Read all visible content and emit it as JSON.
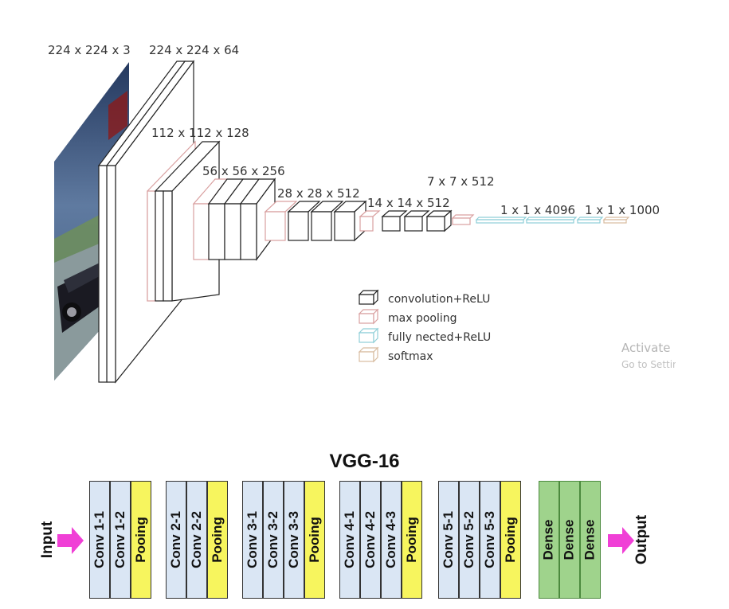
{
  "top_diagram": {
    "dimension_labels": [
      "224 x 224 x 3",
      "224 x 224 x 64",
      "112 x 112 x 128",
      "56 x 56 x 256",
      "28 x 28 x 512",
      "14 x 14 x 512",
      "7 x 7 x 512",
      "1 x 1 x 4096",
      "1 x 1 x 1000"
    ],
    "legend": [
      {
        "label": "convolution+ReLU",
        "color": "#222222"
      },
      {
        "label": "max pooling",
        "color": "#d9a0a0"
      },
      {
        "label": "fully nected+ReLU",
        "color": "#8fcfd8"
      },
      {
        "label": "softmax",
        "color": "#d8bca0"
      }
    ],
    "watermark": {
      "line1": "Activate",
      "line2": "Go to Settings"
    }
  },
  "bottom_diagram": {
    "title": "VGG-16",
    "input_label": "Input",
    "output_label": "Output",
    "arrow_color": "#f03fd6",
    "groups": [
      [
        "Conv 1-1",
        "Conv 1-2",
        "Pooing"
      ],
      [
        "Conv 2-1",
        "Conv 2-2",
        "Pooing"
      ],
      [
        "Conv 3-1",
        "Conv 3-2",
        "Conv 3-3",
        "Pooing"
      ],
      [
        "Conv 4-1",
        "Conv 4-2",
        "Conv 4-3",
        "Pooing"
      ],
      [
        "Conv 5-1",
        "Conv 5-2",
        "Conv 5-3",
        "Pooing"
      ],
      [
        "Dense",
        "Dense",
        "Dense"
      ]
    ]
  }
}
